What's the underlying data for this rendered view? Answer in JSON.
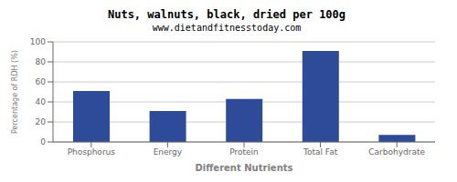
{
  "chart_data": {
    "type": "bar",
    "title": "Nuts, walnuts, black, dried per 100g",
    "subtitle": "www.dietandfitnesstoday.com",
    "xlabel": "Different Nutrients",
    "ylabel": "Percentage of RDH (%)",
    "categories": [
      "Phosphorus",
      "Energy",
      "Protein",
      "Total Fat",
      "Carbohydrate"
    ],
    "values": [
      51,
      31,
      43,
      91,
      7
    ],
    "color": "#2e4b99",
    "ylim": [
      0,
      100
    ],
    "yticks": [
      0,
      20,
      40,
      60,
      80,
      100
    ],
    "grid": true
  }
}
